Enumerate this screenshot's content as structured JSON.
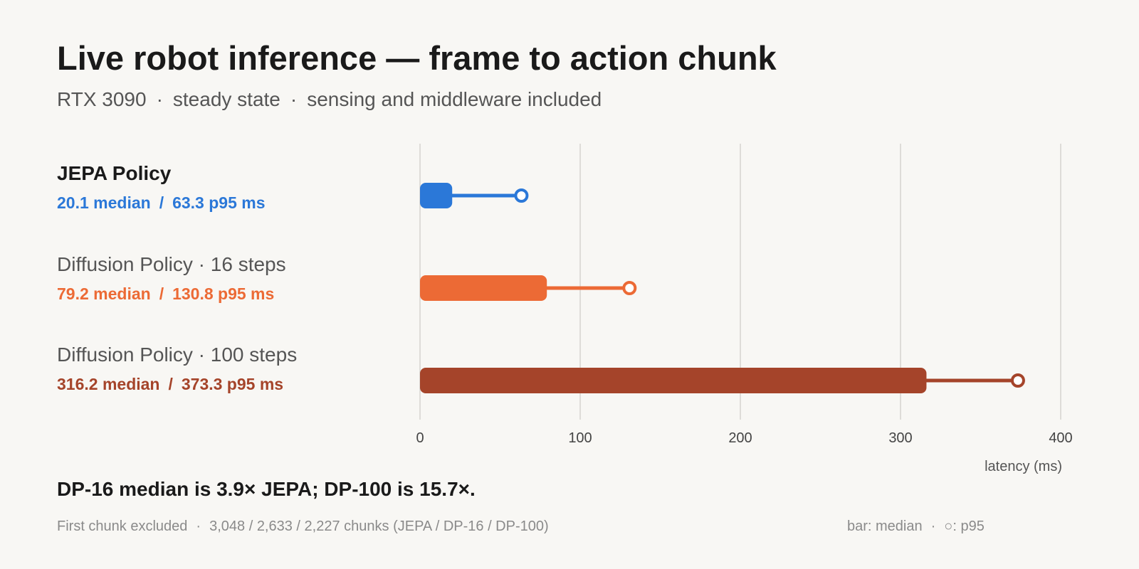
{
  "title": "Live robot inference — frame to action chunk",
  "subtitle": {
    "parts": [
      "RTX 3090",
      "steady state",
      "sensing and middleware included"
    ],
    "separator": "·"
  },
  "chart_data": {
    "type": "bar",
    "categories": [
      "JEPA Policy",
      "Diffusion Policy · 16 steps",
      "Diffusion Policy · 100 steps"
    ],
    "series": [
      {
        "name": "median",
        "values": [
          20.1,
          79.2,
          316.2
        ]
      },
      {
        "name": "p95",
        "values": [
          63.3,
          130.8,
          373.3
        ]
      }
    ],
    "colors": [
      "#2b78d8",
      "#ec6a35",
      "#a5442a"
    ],
    "stats_labels": [
      {
        "median": "20.1 median",
        "p95": "63.3 p95 ms"
      },
      {
        "median": "79.2 median",
        "p95": "130.8 p95 ms"
      },
      {
        "median": "316.2 median",
        "p95": "373.3 p95 ms"
      }
    ],
    "slash": "/",
    "highlighted_category": "JEPA Policy",
    "xlabel": "latency (ms)",
    "xlim": [
      0,
      400
    ],
    "xticks": [
      0,
      100,
      200,
      300,
      400
    ],
    "grid": true,
    "orientation": "horizontal"
  },
  "takeaway": "DP-16 median is 3.9× JEPA; DP-100 is 15.7×.",
  "footnote": {
    "parts": [
      "First chunk excluded",
      "3,048 / 2,633 / 2,227 chunks (JEPA / DP-16 / DP-100)"
    ],
    "separator": "·"
  },
  "legend_note": {
    "parts": [
      "bar: median",
      "○: p95"
    ],
    "separator": "·"
  }
}
